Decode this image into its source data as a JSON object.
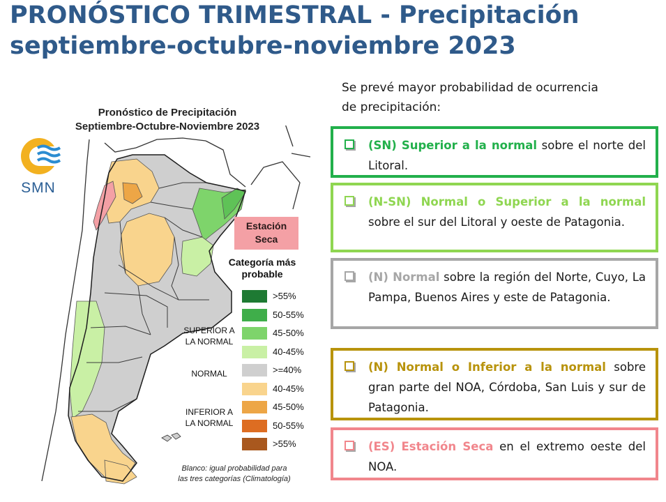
{
  "title": {
    "line1": "PRONÓSTICO TRIMESTRAL - Precipitación",
    "line2": "septiembre-octubre-noviembre 2023"
  },
  "map": {
    "title_line1": "Pronóstico de Precipitación",
    "title_line2": "Septiembre-Octubre-Noviembre 2023",
    "logo_text": "SMN",
    "dry_season_label_line1": "Estación",
    "dry_season_label_line2": "Seca",
    "legend": {
      "title_line1": "Categoría más",
      "title_line2": "probable",
      "items": [
        {
          "label": ">55%",
          "color": "#1e7a33"
        },
        {
          "label": "50-55%",
          "color": "#3fae4a"
        },
        {
          "label": "45-50%",
          "color": "#7ed46b"
        },
        {
          "label": "40-45%",
          "color": "#c9f0a5"
        },
        {
          "label": ">=40%",
          "color": "#cfcfcf"
        },
        {
          "label": "40-45%",
          "color": "#f9d48d"
        },
        {
          "label": "45-50%",
          "color": "#eda646"
        },
        {
          "label": "50-55%",
          "color": "#dd6d22"
        },
        {
          "label": ">55%",
          "color": "#a9581e"
        }
      ],
      "group_superior_line1": "SUPERIOR A",
      "group_superior_line2": "LA NORMAL",
      "group_normal": "NORMAL",
      "group_inferior_line1": "INFERIOR A",
      "group_inferior_line2": "LA NORMAL",
      "note_line1": "Blanco: igual probabilidad para",
      "note_line2": "las tres categorías (Climatología)"
    }
  },
  "intro_line1": "Se prevé mayor probabilidad de ocurrencia",
  "intro_line2": "de precipitación:",
  "boxes": [
    {
      "color": "#22b04b",
      "highlight": "(SN) Superior a la normal",
      "text": " sobre el norte del Litoral."
    },
    {
      "color": "#8fd651",
      "highlight": "(N-SN) Normal o Superior a la normal",
      "text": " sobre el sur del Litoral y oeste de Patagonia."
    },
    {
      "color": "#a6a6a6",
      "highlight": "(N) Normal",
      "text": "  sobre la región del Norte, Cuyo, La Pampa, Buenos Aires y este de Patagonia."
    },
    {
      "color": "#b8930c",
      "highlight": "(N) Normal o Inferior a la normal",
      "text": " sobre gran parte del NOA, Córdoba, San Luis y sur de Patagonia."
    },
    {
      "color": "#f1868c",
      "highlight": "(ES) Estación Seca",
      "text": "  en el extremo oeste del NOA."
    }
  ]
}
